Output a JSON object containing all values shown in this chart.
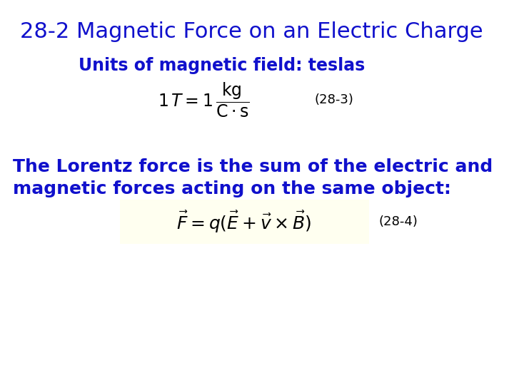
{
  "title": "28-2 Magnetic Force on an Electric Charge",
  "title_color": "#1010CC",
  "title_fontsize": 22,
  "title_bold": false,
  "subtitle": "Units of magnetic field: teslas",
  "subtitle_color": "#1010CC",
  "subtitle_fontsize": 17,
  "subtitle_bold": true,
  "eq1_label": "(28-3)",
  "eq1_color": "black",
  "eq1_fontsize": 17,
  "eq1_label_fontsize": 13,
  "body_text_line1": "The Lorentz force is the sum of the electric and",
  "body_text_line2": "magnetic forces acting on the same object:",
  "body_color": "#1010CC",
  "body_fontsize": 18,
  "body_bold": true,
  "eq2_label": "(28-4)",
  "eq2_color": "black",
  "eq2_fontsize": 18,
  "eq2_label_fontsize": 13,
  "eq2_box_color": "#FFFFF0",
  "background_color": "#FFFFFF"
}
